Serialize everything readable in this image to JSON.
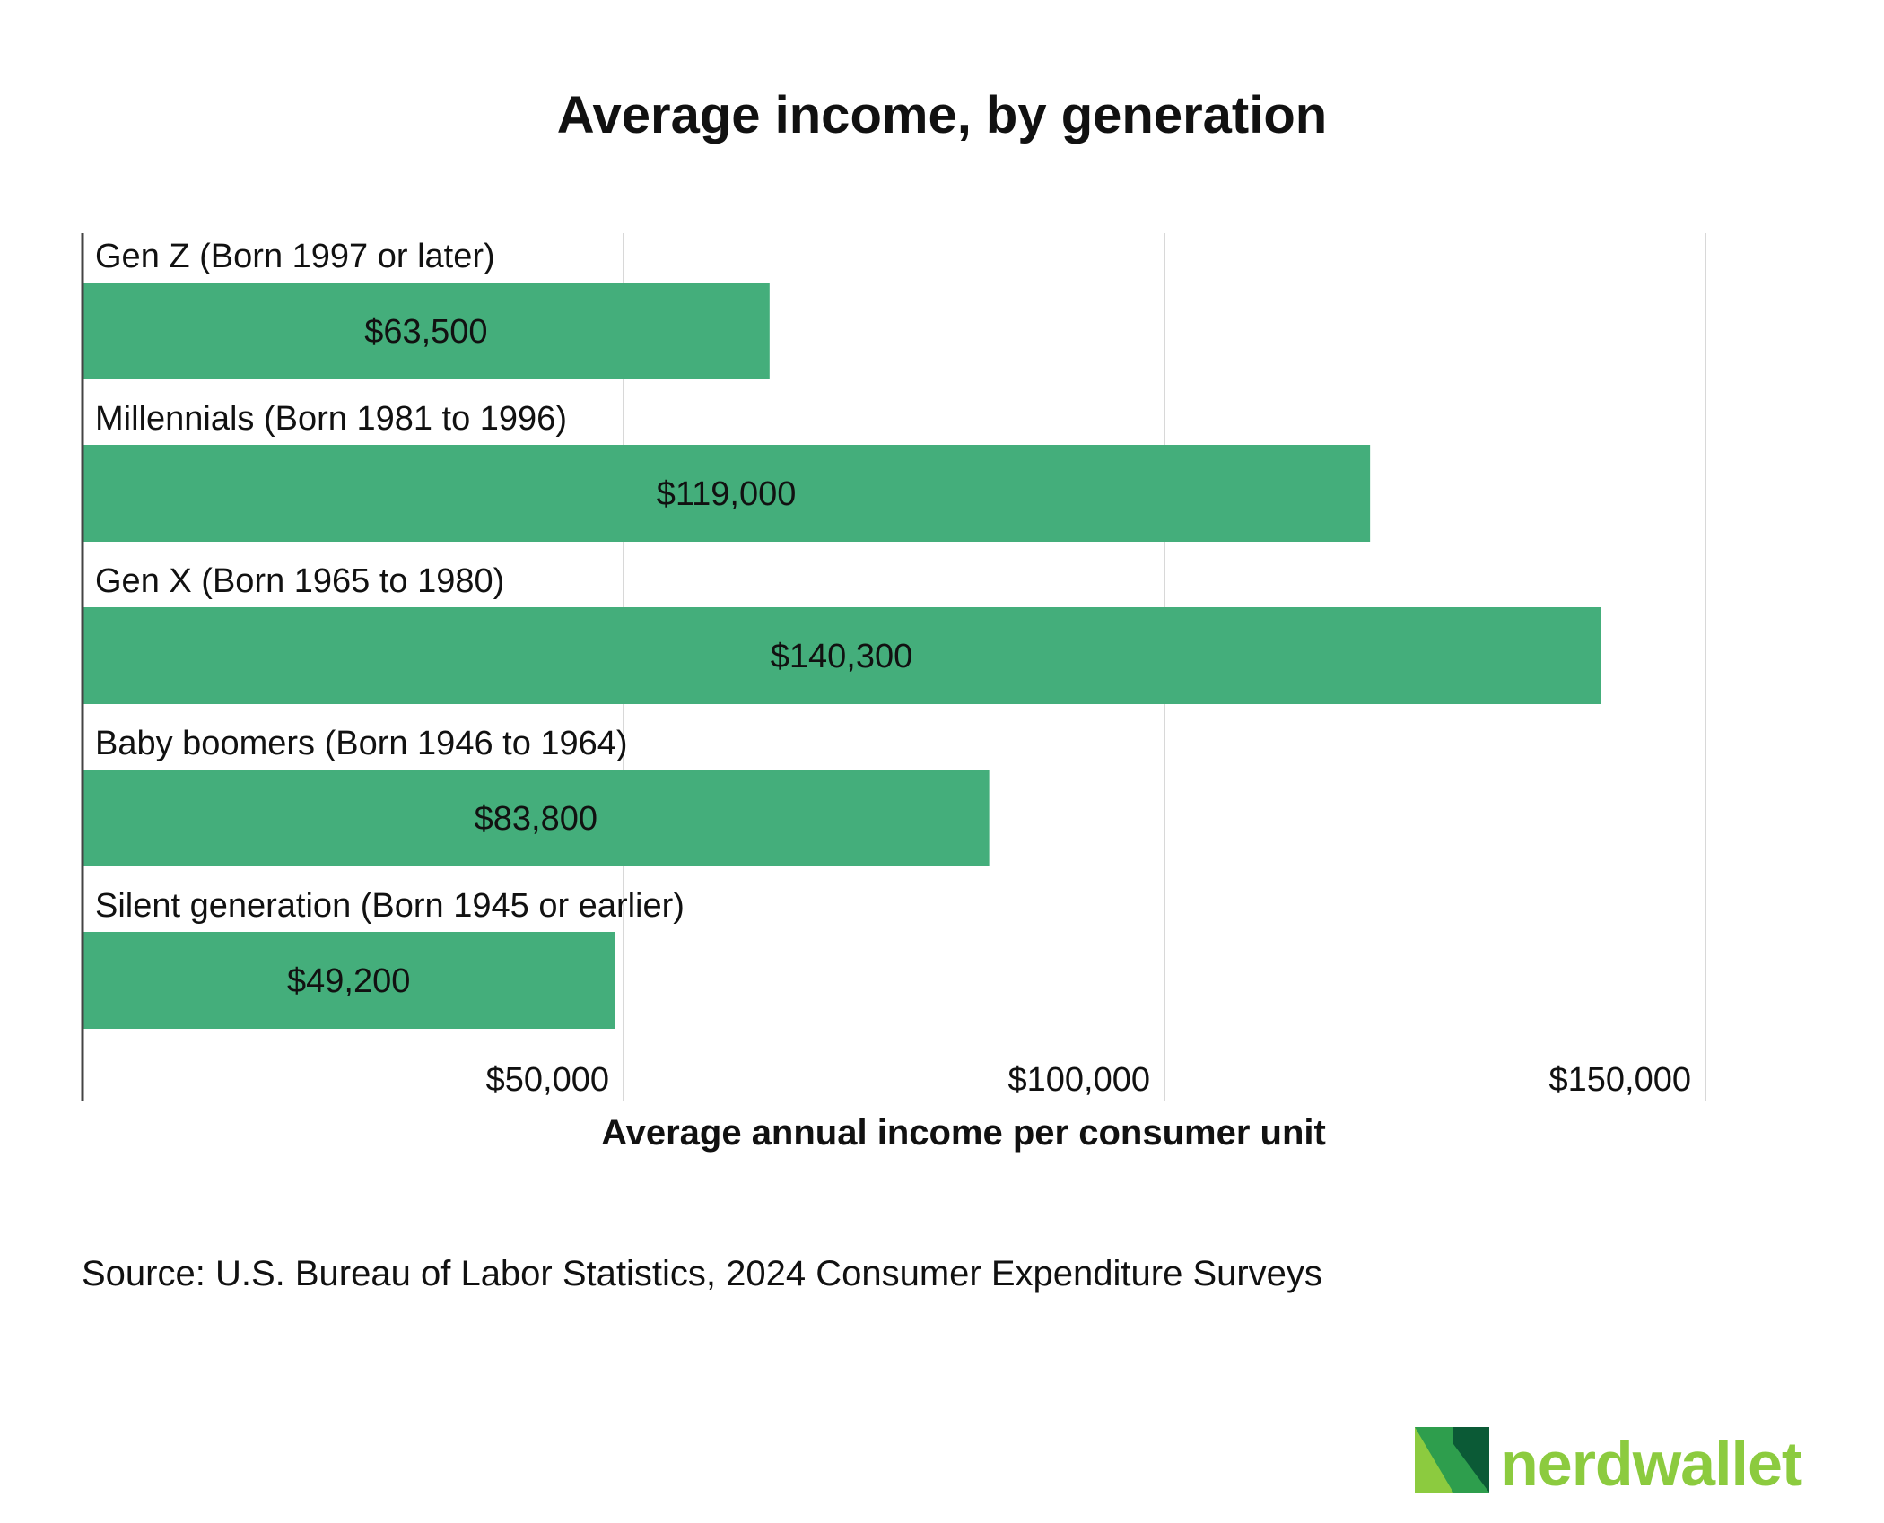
{
  "colors": {
    "bar": "#44ae7b",
    "grid": "#d8d8d8",
    "axis": "#444444",
    "text": "#111111",
    "brand_light": "#8ccb3f",
    "brand_mid": "#2e9e4d",
    "brand_dark": "#0b5a36"
  },
  "source": "Source: U.S. Bureau of Labor Statistics, 2024 Consumer Expenditure Surveys",
  "logo": {
    "text": "nerdwallet",
    "icon": "nerdwallet-n-logo-icon"
  },
  "chart_data": {
    "type": "bar",
    "orientation": "horizontal",
    "title": "Average income, by generation",
    "xlabel": "Average annual income per consumer unit",
    "ylabel": "",
    "xlim": [
      0,
      150000
    ],
    "grid": true,
    "legend": "none",
    "categories": [
      "Gen Z (Born 1997 or later)",
      "Millennials (Born 1981 to 1996)",
      "Gen X (Born 1965 to 1980)",
      "Baby boomers (Born 1946 to 1964)",
      "Silent generation (Born 1945 or earlier)"
    ],
    "values": [
      63500,
      119000,
      140300,
      83800,
      49200
    ],
    "value_labels": [
      "$63,500",
      "$119,000",
      "$140,300",
      "$83,800",
      "$49,200"
    ],
    "ticks": [
      50000,
      100000,
      150000
    ],
    "tick_labels": [
      "$50,000",
      "$100,000",
      "$150,000"
    ]
  }
}
